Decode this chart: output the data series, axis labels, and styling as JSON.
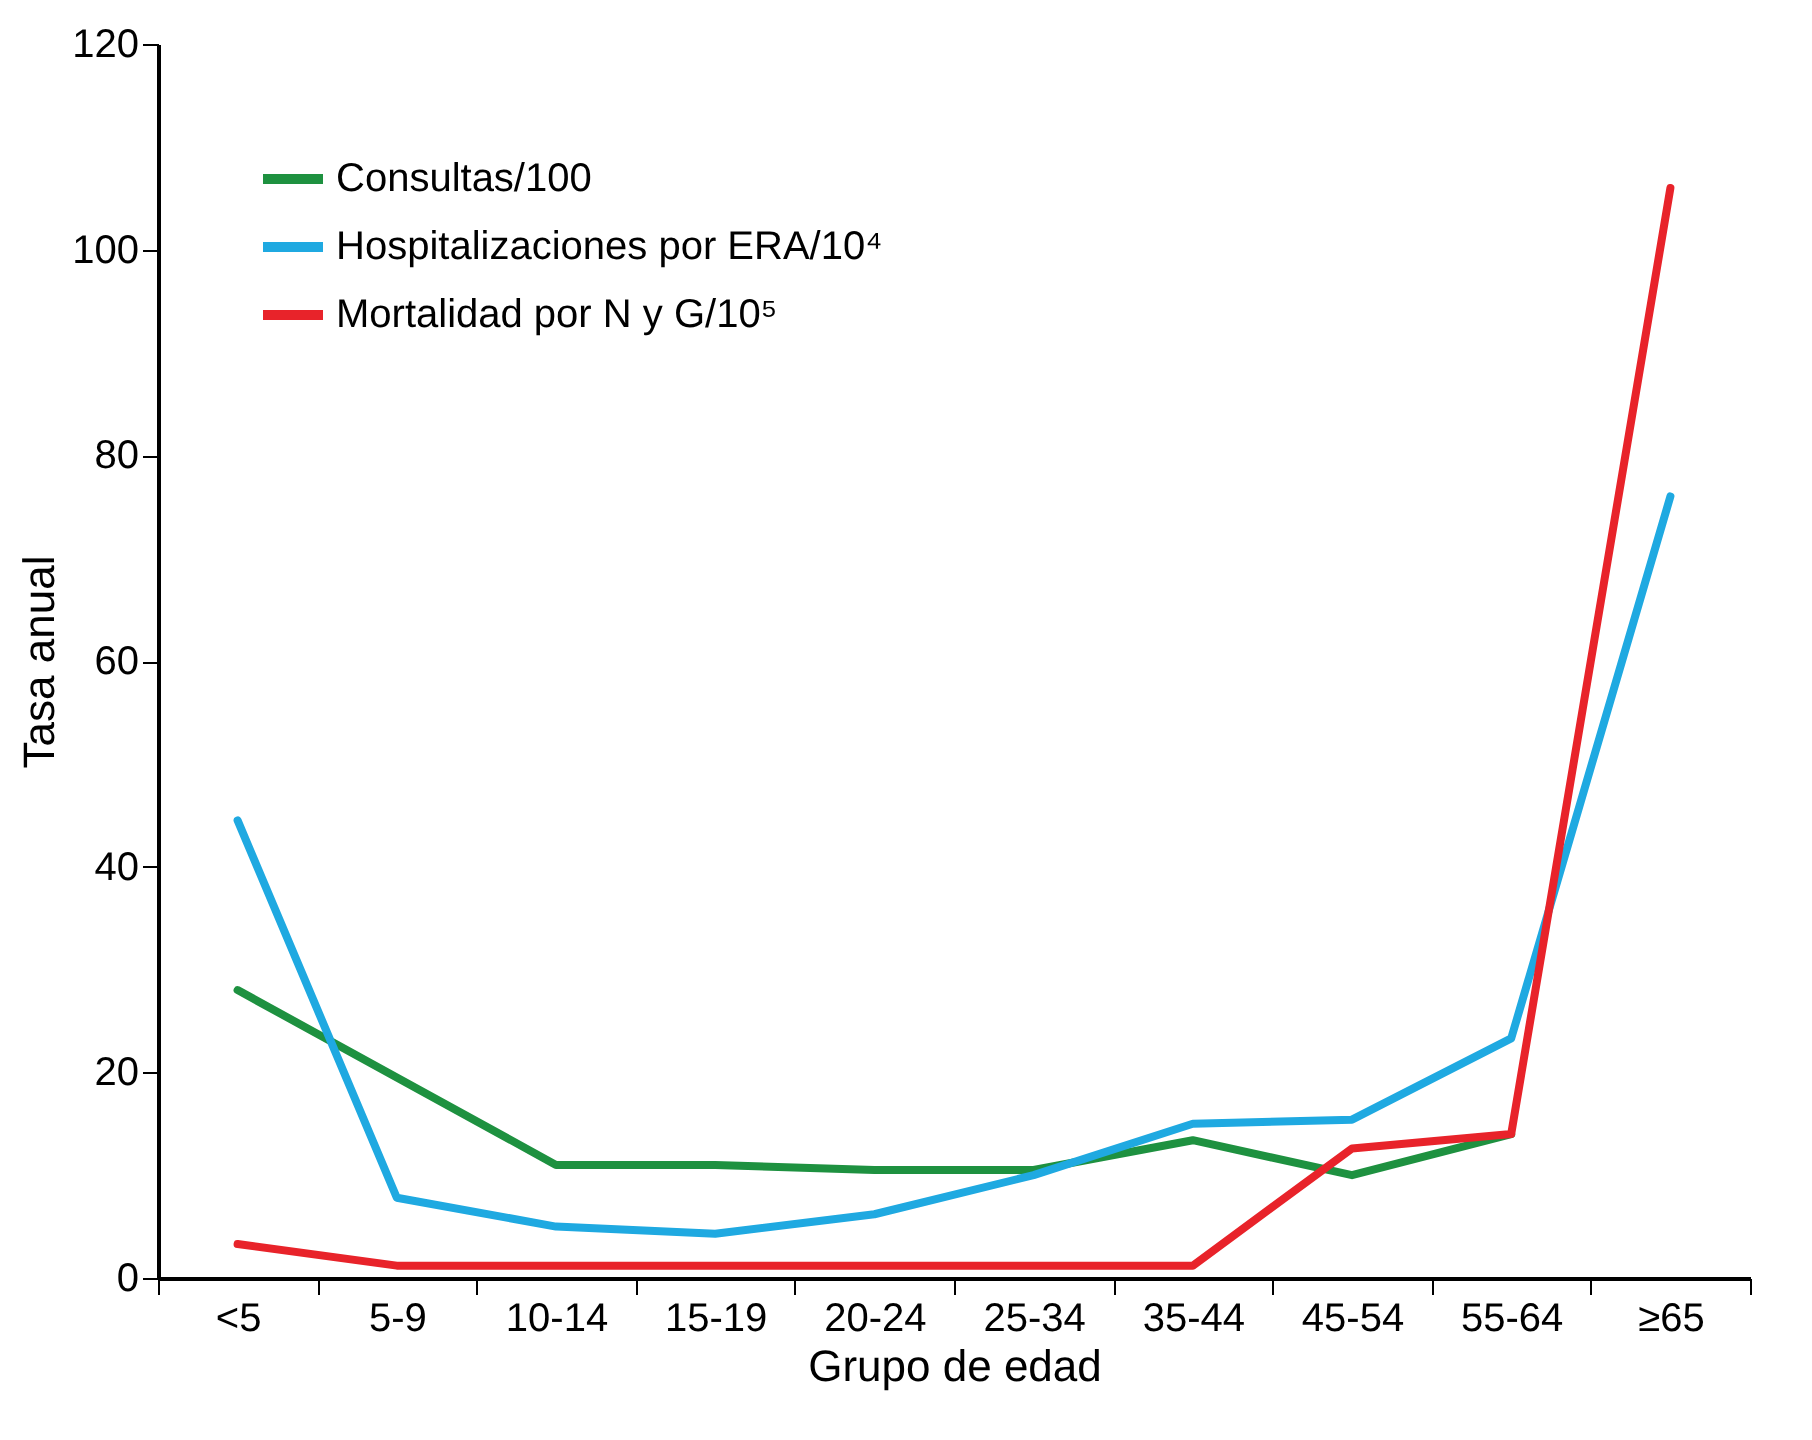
{
  "chart_data": {
    "type": "line",
    "xlabel": "Grupo de edad",
    "ylabel": "Tasa anual",
    "categories": [
      "<5",
      "5-9",
      "10-14",
      "15-19",
      "20-24",
      "25-34",
      "35-44",
      "45-54",
      "55-64",
      "≥65"
    ],
    "series": [
      {
        "name": "Consultas/100",
        "color": "#1e9140",
        "values": [
          28,
          19.5,
          11,
          11,
          10.5,
          10.5,
          13.4,
          10,
          14,
          null
        ]
      },
      {
        "name": "Hospitalizaciones por ERA/10⁴",
        "color": "#1fa9e1",
        "values": [
          44.5,
          7.8,
          5,
          4.3,
          6.2,
          10,
          15,
          15.4,
          23.3,
          76
        ]
      },
      {
        "name": "Mortalidad por N y G/10⁵",
        "color": "#e8232a",
        "values": [
          3.3,
          1.2,
          1.2,
          1.2,
          1.2,
          1.2,
          1.2,
          12.6,
          14,
          106
        ]
      }
    ],
    "ylim": [
      0,
      120
    ],
    "yticks": [
      0,
      20,
      40,
      60,
      80,
      100,
      120
    ],
    "grid": false,
    "legend": "top left"
  }
}
